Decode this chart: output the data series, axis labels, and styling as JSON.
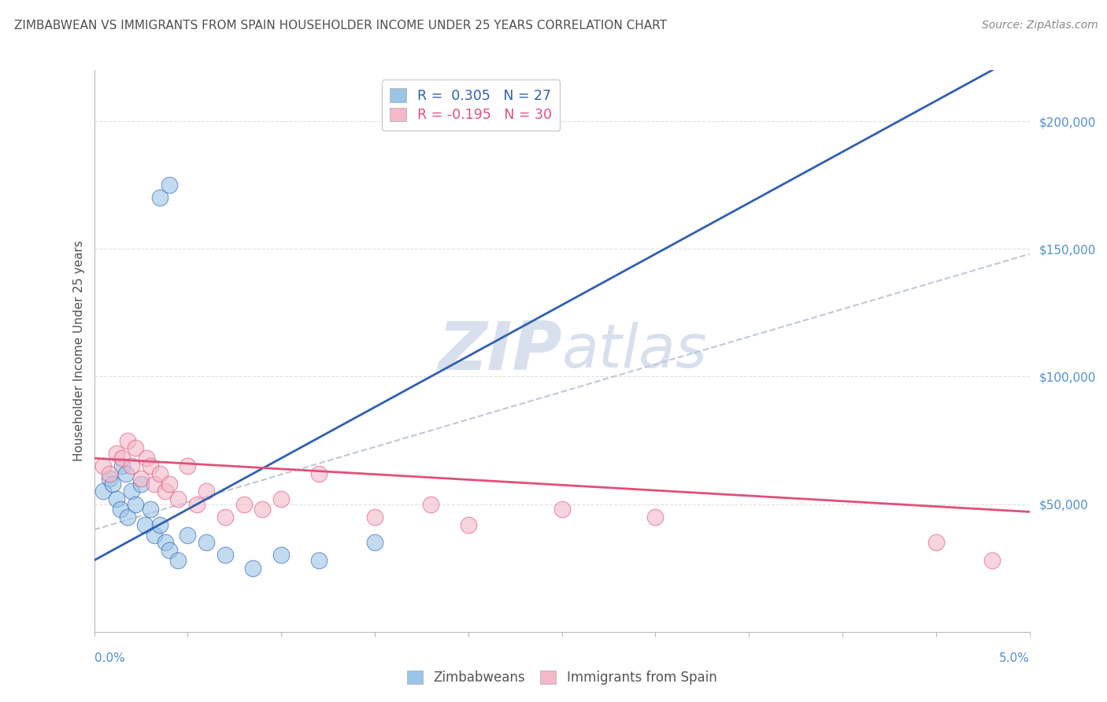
{
  "title": "ZIMBABWEAN VS IMMIGRANTS FROM SPAIN HOUSEHOLDER INCOME UNDER 25 YEARS CORRELATION CHART",
  "source": "Source: ZipAtlas.com",
  "ylabel": "Householder Income Under 25 years",
  "xlim": [
    0.0,
    5.0
  ],
  "ylim": [
    0,
    220000
  ],
  "yticks": [
    0,
    50000,
    100000,
    150000,
    200000
  ],
  "zimbabweans_x": [
    0.05,
    0.08,
    0.1,
    0.12,
    0.14,
    0.15,
    0.17,
    0.18,
    0.2,
    0.22,
    0.25,
    0.27,
    0.3,
    0.32,
    0.35,
    0.38,
    0.4,
    0.45,
    0.5,
    0.6,
    0.7,
    0.85,
    1.0,
    1.2,
    1.5,
    0.35,
    0.4
  ],
  "zimbabweans_y": [
    55000,
    60000,
    58000,
    52000,
    48000,
    65000,
    62000,
    45000,
    55000,
    50000,
    58000,
    42000,
    48000,
    38000,
    42000,
    35000,
    32000,
    28000,
    38000,
    35000,
    30000,
    25000,
    30000,
    28000,
    35000,
    170000,
    175000
  ],
  "spain_x": [
    0.05,
    0.08,
    0.12,
    0.15,
    0.18,
    0.2,
    0.22,
    0.25,
    0.28,
    0.3,
    0.32,
    0.35,
    0.38,
    0.4,
    0.45,
    0.5,
    0.55,
    0.6,
    0.7,
    0.8,
    0.9,
    1.0,
    1.2,
    1.5,
    1.8,
    2.0,
    2.5,
    3.0,
    4.5,
    4.8
  ],
  "spain_y": [
    65000,
    62000,
    70000,
    68000,
    75000,
    65000,
    72000,
    60000,
    68000,
    65000,
    58000,
    62000,
    55000,
    58000,
    52000,
    65000,
    50000,
    55000,
    45000,
    50000,
    48000,
    52000,
    62000,
    45000,
    50000,
    42000,
    48000,
    45000,
    35000,
    28000
  ],
  "blue_color": "#9ac4e8",
  "pink_color": "#f4b8c8",
  "trend_blue_color": "#3060b0",
  "trend_pink_color": "#e0507a",
  "trend_grey_color": "#c0c8d8",
  "watermark_color": "#c8d4e8",
  "background_color": "#ffffff",
  "grid_color": "#e0e0e0",
  "title_color": "#505050",
  "axis_label_color": "#5090d0",
  "source_color": "#888888",
  "ylabel_color": "#505050"
}
